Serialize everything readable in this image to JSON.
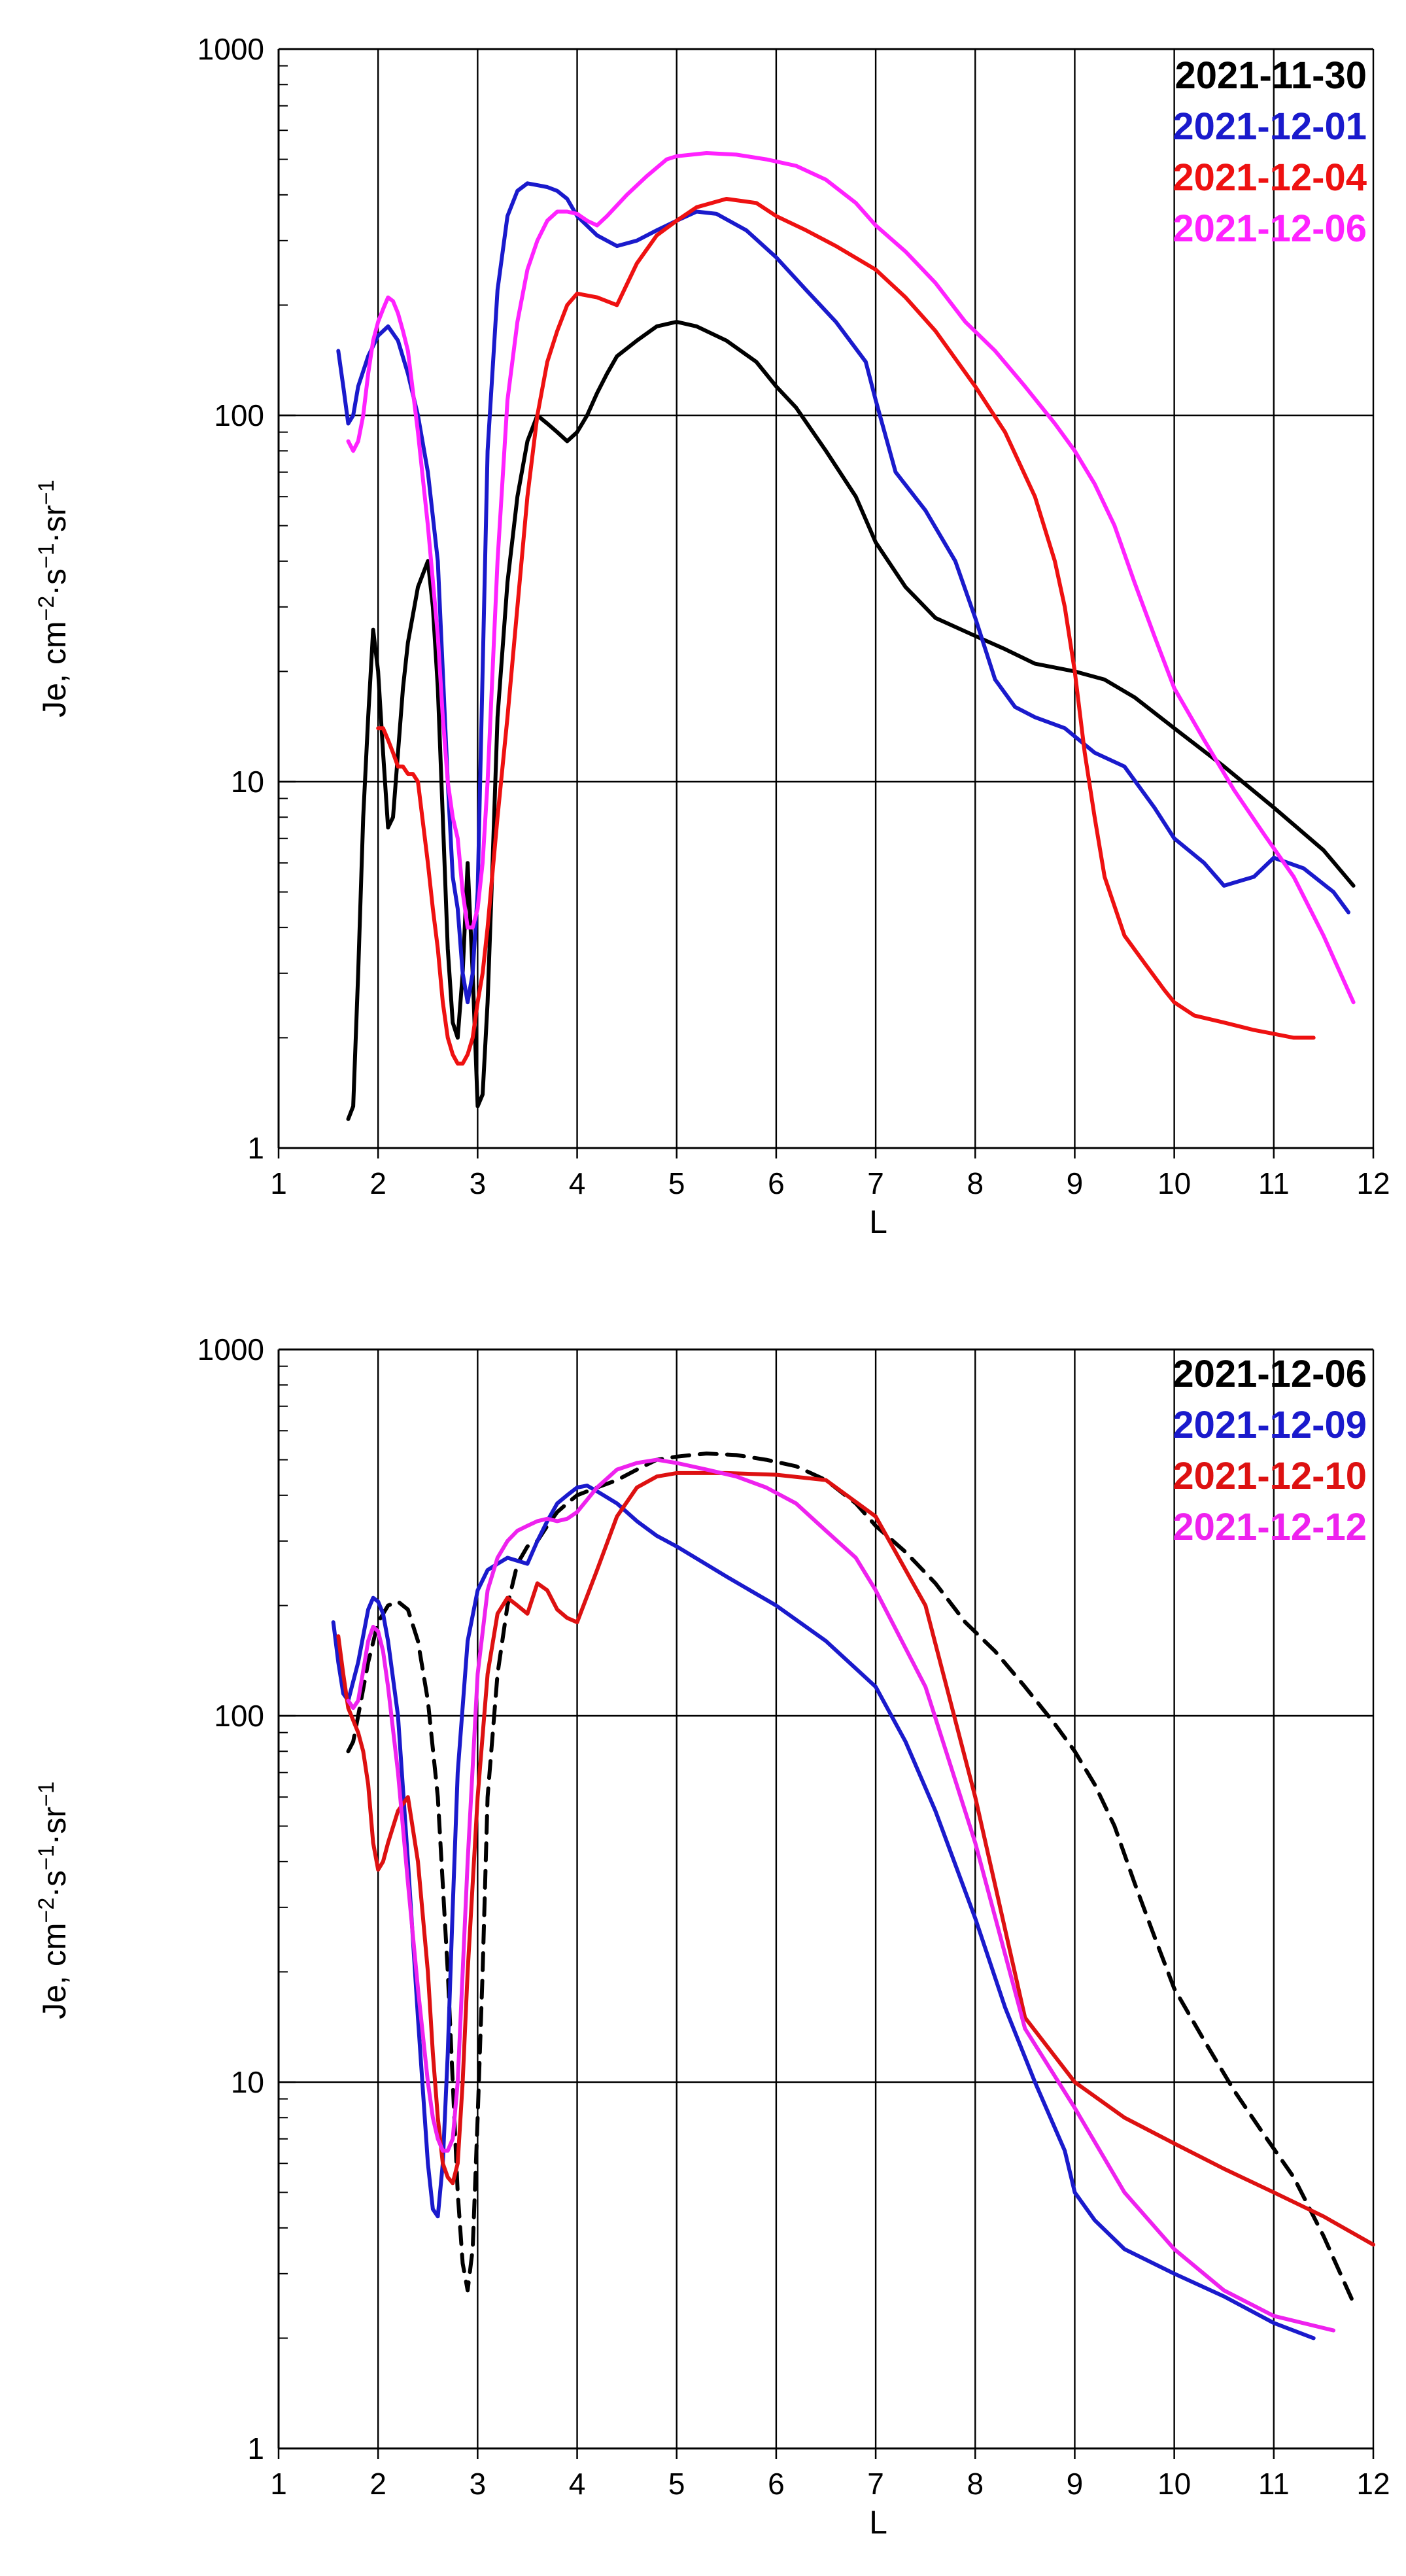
{
  "chart_data": [
    {
      "type": "line",
      "title": "",
      "xlabel": "L",
      "ylabel_main": "Je, cm",
      "ylabel_sup1": "−2",
      "ylabel_mid1": "·s",
      "ylabel_sup2": "−1",
      "ylabel_mid2": "·sr",
      "ylabel_sup3": "−1",
      "yscale": "log",
      "xlim": [
        1,
        12
      ],
      "ylim": [
        1,
        1000
      ],
      "xticks": [
        "1",
        "2",
        "3",
        "4",
        "5",
        "6",
        "7",
        "8",
        "9",
        "10",
        "11",
        "12"
      ],
      "yticks": [
        "1",
        "10",
        "100",
        "1000"
      ],
      "grid": true,
      "legend_position": "top-right",
      "series": [
        {
          "name": "2021-11-30",
          "color": "#000000",
          "dashed": false,
          "x": [
            1.7,
            1.75,
            1.8,
            1.85,
            1.9,
            1.95,
            2.0,
            2.05,
            2.1,
            2.15,
            2.2,
            2.25,
            2.3,
            2.4,
            2.5,
            2.55,
            2.6,
            2.65,
            2.7,
            2.75,
            2.8,
            2.85,
            2.9,
            2.95,
            3.0,
            3.05,
            3.1,
            3.15,
            3.2,
            3.3,
            3.4,
            3.5,
            3.6,
            3.7,
            3.8,
            3.9,
            4.0,
            4.1,
            4.2,
            4.3,
            4.4,
            4.6,
            4.8,
            5.0,
            5.2,
            5.5,
            5.8,
            6.0,
            6.2,
            6.5,
            6.8,
            7.0,
            7.3,
            7.6,
            8.0,
            8.3,
            8.6,
            9.0,
            9.3,
            9.6,
            10.0,
            10.5,
            11.0,
            11.5,
            11.8
          ],
          "y": [
            1.2,
            1.3,
            3,
            8,
            15,
            26,
            20,
            12,
            7.5,
            8,
            12,
            18,
            24,
            34,
            40,
            30,
            18,
            8,
            3.5,
            2.2,
            2,
            3,
            6,
            3,
            1.3,
            1.4,
            2.5,
            6,
            15,
            35,
            60,
            85,
            100,
            95,
            90,
            85,
            90,
            100,
            115,
            130,
            145,
            160,
            175,
            180,
            175,
            160,
            140,
            120,
            105,
            80,
            60,
            45,
            34,
            28,
            25,
            23,
            21,
            20,
            19,
            17,
            14,
            11,
            8.5,
            6.5,
            5.2
          ]
        },
        {
          "name": "2021-12-01",
          "color": "#1a1acc",
          "dashed": false,
          "x": [
            1.6,
            1.65,
            1.7,
            1.75,
            1.8,
            1.9,
            2.0,
            2.1,
            2.2,
            2.3,
            2.4,
            2.5,
            2.6,
            2.65,
            2.7,
            2.75,
            2.8,
            2.85,
            2.9,
            2.95,
            3.0,
            3.05,
            3.1,
            3.2,
            3.3,
            3.4,
            3.5,
            3.6,
            3.7,
            3.8,
            3.9,
            4.0,
            4.2,
            4.4,
            4.6,
            4.8,
            5.0,
            5.2,
            5.4,
            5.7,
            6.0,
            6.3,
            6.6,
            6.9,
            7.0,
            7.2,
            7.5,
            7.8,
            8.0,
            8.2,
            8.4,
            8.6,
            8.9,
            9.2,
            9.5,
            9.8,
            10.0,
            10.3,
            10.5,
            10.8,
            11.0,
            11.3,
            11.6,
            11.75
          ],
          "y": [
            150,
            120,
            95,
            100,
            120,
            145,
            165,
            175,
            160,
            130,
            100,
            70,
            40,
            20,
            10,
            5.5,
            4.5,
            3,
            2.5,
            3,
            5,
            20,
            80,
            220,
            350,
            410,
            430,
            425,
            420,
            410,
            390,
            350,
            310,
            290,
            300,
            320,
            340,
            360,
            355,
            320,
            270,
            220,
            180,
            140,
            110,
            70,
            55,
            40,
            28,
            19,
            16,
            15,
            14,
            12,
            11,
            8.5,
            7,
            6,
            5.2,
            5.5,
            6.2,
            5.8,
            5,
            4.4
          ]
        },
        {
          "name": "2021-12-04",
          "color": "#ee1111",
          "dashed": false,
          "x": [
            2.0,
            2.05,
            2.1,
            2.15,
            2.2,
            2.25,
            2.3,
            2.35,
            2.4,
            2.5,
            2.55,
            2.6,
            2.65,
            2.7,
            2.75,
            2.8,
            2.85,
            2.9,
            2.95,
            3.0,
            3.05,
            3.1,
            3.2,
            3.3,
            3.4,
            3.5,
            3.6,
            3.7,
            3.8,
            3.9,
            4.0,
            4.2,
            4.4,
            4.6,
            4.8,
            5.0,
            5.2,
            5.5,
            5.8,
            6.0,
            6.3,
            6.6,
            7.0,
            7.3,
            7.6,
            8.0,
            8.3,
            8.6,
            8.8,
            8.9,
            9.0,
            9.1,
            9.2,
            9.3,
            9.5,
            9.7,
            9.9,
            10.0,
            10.2,
            10.5,
            10.8,
            11.0,
            11.2,
            11.4
          ],
          "y": [
            14,
            14,
            13,
            12,
            11,
            11,
            10.5,
            10.5,
            10,
            6,
            4.5,
            3.5,
            2.5,
            2,
            1.8,
            1.7,
            1.7,
            1.8,
            2,
            2.5,
            3,
            4,
            8,
            15,
            30,
            60,
            100,
            140,
            170,
            200,
            215,
            210,
            200,
            260,
            310,
            340,
            370,
            390,
            380,
            350,
            320,
            290,
            250,
            210,
            170,
            120,
            90,
            60,
            40,
            30,
            20,
            12,
            8,
            5.5,
            3.8,
            3.2,
            2.7,
            2.5,
            2.3,
            2.2,
            2.1,
            2.05,
            2.0,
            2.0
          ]
        },
        {
          "name": "2021-12-06",
          "color": "#ff22ff",
          "dashed": false,
          "x": [
            1.7,
            1.75,
            1.8,
            1.85,
            1.9,
            1.95,
            2.0,
            2.05,
            2.1,
            2.15,
            2.2,
            2.25,
            2.3,
            2.4,
            2.5,
            2.6,
            2.65,
            2.7,
            2.75,
            2.8,
            2.85,
            2.9,
            2.95,
            3.0,
            3.05,
            3.1,
            3.2,
            3.3,
            3.4,
            3.5,
            3.6,
            3.7,
            3.8,
            3.9,
            4.0,
            4.1,
            4.2,
            4.3,
            4.5,
            4.7,
            4.9,
            5.0,
            5.3,
            5.6,
            5.9,
            6.2,
            6.5,
            6.8,
            7.0,
            7.3,
            7.6,
            7.9,
            8.2,
            8.5,
            8.8,
            9.0,
            9.2,
            9.4,
            9.6,
            9.8,
            10.0,
            10.3,
            10.6,
            10.9,
            11.2,
            11.5,
            11.8
          ],
          "y": [
            85,
            80,
            85,
            100,
            130,
            160,
            180,
            195,
            210,
            205,
            190,
            170,
            150,
            90,
            50,
            25,
            15,
            10,
            8,
            7,
            5,
            4,
            4,
            4.5,
            6,
            10,
            40,
            110,
            180,
            250,
            300,
            340,
            360,
            360,
            355,
            340,
            330,
            350,
            400,
            450,
            500,
            510,
            520,
            515,
            500,
            480,
            440,
            380,
            330,
            280,
            230,
            180,
            150,
            120,
            95,
            80,
            65,
            50,
            35,
            25,
            18,
            13,
            9.5,
            7.2,
            5.5,
            3.8,
            2.5
          ]
        }
      ]
    },
    {
      "type": "line",
      "title": "",
      "xlabel": "L",
      "ylabel_main": "Je, cm",
      "ylabel_sup1": "−2",
      "ylabel_mid1": "·s",
      "ylabel_sup2": "−1",
      "ylabel_mid2": "·sr",
      "ylabel_sup3": "−1",
      "yscale": "log",
      "xlim": [
        1,
        12
      ],
      "ylim": [
        1,
        1000
      ],
      "xticks": [
        "1",
        "2",
        "3",
        "4",
        "5",
        "6",
        "7",
        "8",
        "9",
        "10",
        "11",
        "12"
      ],
      "yticks": [
        "1",
        "10",
        "100",
        "1000"
      ],
      "grid": true,
      "legend_position": "top-right",
      "series": [
        {
          "name": "2021-12-06",
          "color": "#000000",
          "dashed": true,
          "x": [
            1.7,
            1.75,
            1.8,
            1.9,
            2.0,
            2.1,
            2.2,
            2.3,
            2.4,
            2.5,
            2.6,
            2.7,
            2.75,
            2.8,
            2.85,
            2.9,
            2.95,
            3.0,
            3.05,
            3.1,
            3.2,
            3.3,
            3.4,
            3.5,
            3.6,
            3.7,
            3.8,
            3.9,
            4.0,
            4.2,
            4.4,
            4.6,
            4.8,
            5.0,
            5.3,
            5.6,
            5.9,
            6.2,
            6.5,
            6.8,
            7.0,
            7.3,
            7.6,
            7.9,
            8.2,
            8.5,
            8.8,
            9.0,
            9.2,
            9.4,
            9.6,
            9.8,
            10.0,
            10.3,
            10.6,
            10.9,
            11.2,
            11.5,
            11.8
          ],
          "y": [
            80,
            85,
            100,
            140,
            180,
            200,
            205,
            195,
            160,
            110,
            60,
            20,
            10,
            5,
            3.2,
            2.7,
            3.5,
            8,
            20,
            60,
            130,
            200,
            260,
            290,
            300,
            330,
            360,
            380,
            400,
            420,
            440,
            470,
            500,
            510,
            520,
            515,
            500,
            480,
            440,
            380,
            330,
            280,
            230,
            180,
            150,
            120,
            95,
            80,
            65,
            50,
            35,
            25,
            18,
            13,
            9.5,
            7.2,
            5.5,
            3.8,
            2.5
          ]
        },
        {
          "name": "2021-12-09",
          "color": "#1a1acc",
          "dashed": false,
          "x": [
            1.55,
            1.6,
            1.65,
            1.7,
            1.8,
            1.9,
            1.95,
            2.0,
            2.05,
            2.1,
            2.2,
            2.3,
            2.4,
            2.5,
            2.55,
            2.6,
            2.65,
            2.7,
            2.75,
            2.8,
            2.9,
            3.0,
            3.1,
            3.2,
            3.3,
            3.4,
            3.5,
            3.6,
            3.7,
            3.8,
            3.9,
            4.0,
            4.1,
            4.2,
            4.4,
            4.6,
            4.8,
            5.0,
            5.5,
            6.0,
            6.5,
            7.0,
            7.3,
            7.6,
            8.0,
            8.3,
            8.6,
            8.9,
            9.0,
            9.2,
            9.5,
            10.0,
            10.5,
            11.0,
            11.4
          ],
          "y": [
            180,
            140,
            115,
            110,
            140,
            195,
            210,
            205,
            190,
            160,
            100,
            40,
            15,
            6,
            4.5,
            4.3,
            6,
            12,
            30,
            70,
            160,
            220,
            250,
            260,
            270,
            265,
            260,
            300,
            340,
            380,
            400,
            420,
            425,
            410,
            380,
            340,
            310,
            290,
            240,
            200,
            160,
            120,
            85,
            55,
            28,
            16,
            10,
            6.5,
            5,
            4.2,
            3.5,
            3,
            2.6,
            2.2,
            2.0
          ]
        },
        {
          "name": "2021-12-10",
          "color": "#dd1111",
          "dashed": false,
          "x": [
            1.6,
            1.65,
            1.7,
            1.8,
            1.85,
            1.9,
            1.95,
            2.0,
            2.05,
            2.1,
            2.2,
            2.3,
            2.4,
            2.5,
            2.55,
            2.6,
            2.65,
            2.7,
            2.75,
            2.8,
            2.85,
            2.9,
            3.0,
            3.1,
            3.2,
            3.3,
            3.4,
            3.5,
            3.6,
            3.7,
            3.8,
            3.9,
            4.0,
            4.2,
            4.4,
            4.6,
            4.8,
            5.0,
            5.5,
            6.0,
            6.5,
            7.0,
            7.5,
            8.0,
            8.5,
            9.0,
            9.5,
            10.0,
            10.5,
            11.0,
            11.5,
            12.0
          ],
          "y": [
            165,
            130,
            105,
            90,
            80,
            65,
            45,
            38,
            40,
            45,
            55,
            60,
            40,
            20,
            12,
            8,
            6,
            5.5,
            5.3,
            6,
            10,
            20,
            60,
            130,
            190,
            210,
            200,
            190,
            230,
            220,
            195,
            185,
            180,
            250,
            350,
            420,
            450,
            460,
            460,
            455,
            440,
            350,
            200,
            60,
            15,
            10,
            8,
            6.8,
            5.8,
            5,
            4.3,
            3.6
          ]
        },
        {
          "name": "2021-12-12",
          "color": "#ee22ee",
          "dashed": false,
          "x": [
            1.7,
            1.75,
            1.8,
            1.9,
            1.95,
            2.0,
            2.05,
            2.1,
            2.2,
            2.3,
            2.4,
            2.5,
            2.55,
            2.6,
            2.65,
            2.7,
            2.75,
            2.8,
            2.9,
            3.0,
            3.1,
            3.2,
            3.3,
            3.4,
            3.5,
            3.6,
            3.7,
            3.8,
            3.9,
            4.0,
            4.2,
            4.4,
            4.6,
            4.8,
            5.0,
            5.3,
            5.6,
            5.9,
            6.2,
            6.5,
            6.8,
            7.0,
            7.5,
            8.0,
            8.5,
            9.0,
            9.5,
            10.0,
            10.5,
            11.0,
            11.6
          ],
          "y": [
            110,
            105,
            110,
            160,
            175,
            170,
            150,
            120,
            70,
            35,
            18,
            10,
            8,
            7,
            6.5,
            6.5,
            7,
            10,
            40,
            130,
            220,
            270,
            300,
            320,
            330,
            340,
            345,
            340,
            345,
            360,
            420,
            470,
            490,
            500,
            490,
            470,
            450,
            420,
            380,
            320,
            270,
            220,
            120,
            45,
            14,
            8.5,
            5,
            3.5,
            2.7,
            2.3,
            2.1
          ]
        }
      ]
    }
  ]
}
